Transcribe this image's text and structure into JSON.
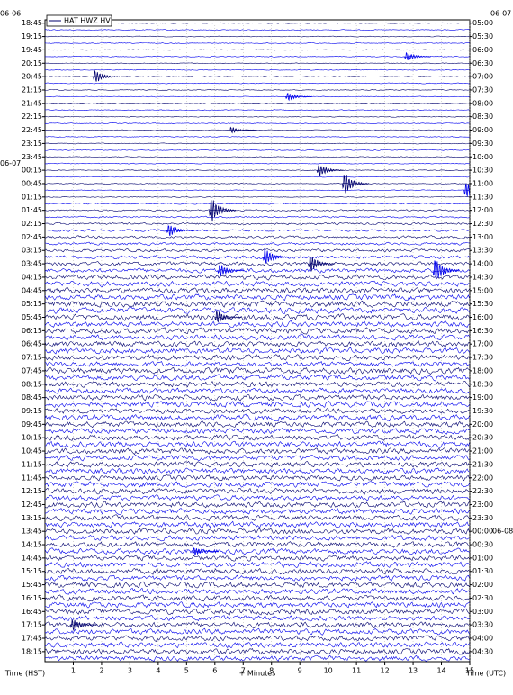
{
  "chart_data": {
    "type": "helicorder",
    "legend": "HAT HWZ HV",
    "xlabel": "+ Minutes",
    "left_axis_label": "Time (HST)",
    "right_axis_label": "Time (UTC)",
    "left_dates": [
      "06-06",
      "06-07"
    ],
    "right_dates": [
      "06-07",
      "06-08"
    ],
    "xlim": [
      0,
      15
    ],
    "xticks": [
      1,
      2,
      3,
      4,
      5,
      6,
      7,
      8,
      9,
      10,
      11,
      12,
      13,
      14,
      15
    ],
    "left_labels": [
      "18:45",
      "19:15",
      "19:45",
      "20:15",
      "20:45",
      "21:15",
      "21:45",
      "22:15",
      "22:45",
      "23:15",
      "23:45",
      "00:15",
      "00:45",
      "01:15",
      "01:45",
      "02:15",
      "02:45",
      "03:15",
      "03:45",
      "04:15",
      "04:45",
      "05:15",
      "05:45",
      "06:15",
      "06:45",
      "07:15",
      "07:45",
      "08:15",
      "08:45",
      "09:15",
      "09:45",
      "10:15",
      "10:45",
      "11:15",
      "11:45",
      "12:15",
      "12:45",
      "13:15",
      "13:45",
      "14:15",
      "14:45",
      "15:15",
      "15:45",
      "16:15",
      "16:45",
      "17:15",
      "17:45",
      "18:15"
    ],
    "right_labels": [
      "05:00",
      "05:30",
      "06:00",
      "06:30",
      "07:00",
      "07:30",
      "08:00",
      "08:30",
      "09:00",
      "09:30",
      "10:00",
      "10:30",
      "11:00",
      "11:30",
      "12:00",
      "12:30",
      "13:00",
      "13:30",
      "14:00",
      "14:30",
      "15:00",
      "15:30",
      "16:00",
      "16:30",
      "17:00",
      "17:30",
      "18:00",
      "18:30",
      "19:00",
      "19:30",
      "20:00",
      "20:30",
      "21:00",
      "21:30",
      "22:00",
      "22:30",
      "23:00",
      "23:30",
      "00:00",
      "00:30",
      "01:00",
      "01:30",
      "02:00",
      "02:30",
      "03:00",
      "03:30",
      "04:00",
      "04:30"
    ],
    "colors": [
      "#00006e",
      "#0000ee"
    ],
    "amplitude": [
      0.2,
      0.2,
      0.2,
      0.2,
      0.2,
      0.2,
      0.2,
      0.2,
      0.2,
      0.2,
      0.2,
      0.2,
      0.2,
      0.2,
      0.2,
      0.2,
      0.2,
      0.2,
      0.2,
      0.2,
      0.2,
      0.2,
      0.2,
      0.2,
      0.2,
      0.2,
      0.2,
      0.3,
      0.4,
      0.4,
      0.5,
      0.5,
      0.6,
      0.6,
      0.7,
      0.8,
      0.9,
      1.0,
      1.1,
      1.2,
      1.3,
      1.3,
      1.4,
      1.4,
      1.4,
      1.3,
      1.3,
      1.2,
      1.3,
      1.3,
      1.3,
      1.2,
      1.4,
      1.3,
      1.3,
      1.2,
      1.3,
      1.3,
      1.2,
      1.3,
      1.3,
      1.2,
      1.3,
      1.4,
      1.3,
      1.2,
      1.3,
      1.3,
      1.2,
      1.3,
      1.3,
      1.2,
      1.3,
      1.3,
      1.2,
      1.3,
      1.3,
      1.2,
      1.3,
      1.3,
      1.2,
      1.3,
      1.3,
      1.2,
      1.3,
      1.3,
      1.2,
      1.3,
      1.3,
      1.2,
      1.3,
      1.3,
      1.2,
      1.3,
      1.3,
      1.2
    ],
    "events": [
      {
        "row": 5,
        "minute": 12.7,
        "amplitude": 2
      },
      {
        "row": 8,
        "minute": 1.7,
        "amplitude": 3
      },
      {
        "row": 11,
        "minute": 8.5,
        "amplitude": 2
      },
      {
        "row": 16,
        "minute": 6.5,
        "amplitude": 1.5
      },
      {
        "row": 22,
        "minute": 9.6,
        "amplitude": 3
      },
      {
        "row": 24,
        "minute": 10.5,
        "amplitude": 5
      },
      {
        "row": 25,
        "minute": 14.8,
        "amplitude": 4
      },
      {
        "row": 28,
        "minute": 5.8,
        "amplitude": 6
      },
      {
        "row": 31,
        "minute": 4.3,
        "amplitude": 3
      },
      {
        "row": 35,
        "minute": 7.7,
        "amplitude": 4
      },
      {
        "row": 36,
        "minute": 9.3,
        "amplitude": 4
      },
      {
        "row": 37,
        "minute": 13.7,
        "amplitude": 6
      },
      {
        "row": 37,
        "minute": 6.1,
        "amplitude": 3
      },
      {
        "row": 44,
        "minute": 6.0,
        "amplitude": 3
      },
      {
        "row": 79,
        "minute": 5.2,
        "amplitude": 2
      },
      {
        "row": 90,
        "minute": 0.9,
        "amplitude": 3
      }
    ]
  }
}
